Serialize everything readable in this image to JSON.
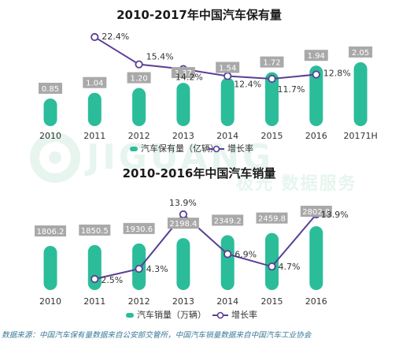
{
  "watermark": {
    "logo_text": "JIGUANG",
    "tagline": "极光 数据服务"
  },
  "colors": {
    "bar": "#2bbd9a",
    "line": "#5a3f95",
    "label_bg": "#a9a9a9",
    "label_text": "#ffffff",
    "title": "#1a1a1a",
    "watermark": "#e6f4ee"
  },
  "source_note": "数据来源：中国汽车保有量数据来自公安部交管所，中国汽车销量数据来自中国汽车工业协会",
  "chart_data": [
    {
      "type": "bar",
      "title": "2010-2017年中国汽车保有量",
      "categories": [
        "2010",
        "2011",
        "2012",
        "2013",
        "2014",
        "2015",
        "2016",
        "20171H"
      ],
      "series": [
        {
          "name": "汽车保有量（亿辆）",
          "type": "bar",
          "values": [
            0.85,
            1.04,
            1.2,
            1.37,
            1.54,
            1.72,
            1.94,
            2.05
          ],
          "labels": [
            "0.85",
            "1.04",
            "1.20",
            "1.37",
            "1.54",
            "1.72",
            "1.94",
            "2.05"
          ]
        },
        {
          "name": "增长率",
          "type": "line",
          "values": [
            null,
            22.4,
            15.4,
            14.2,
            12.4,
            11.7,
            12.8,
            null
          ],
          "labels": [
            "",
            "22.4%",
            "15.4%",
            "14.2%",
            "12.4%",
            "11.7%",
            "12.8%",
            ""
          ]
        }
      ],
      "legend_position": "bottom-right",
      "grid": false
    },
    {
      "type": "bar",
      "title": "2010-2016年中国汽车销量",
      "categories": [
        "2010",
        "2011",
        "2012",
        "2013",
        "2014",
        "2015",
        "2016"
      ],
      "series": [
        {
          "name": "汽车销量（万辆）",
          "type": "bar",
          "values": [
            1806.2,
            1850.5,
            1930.6,
            2198.4,
            2349.2,
            2459.8,
            2802.8
          ],
          "labels": [
            "1806.2",
            "1850.5",
            "1930.6",
            "2198.4",
            "2349.2",
            "2459.8",
            "2802.8"
          ]
        },
        {
          "name": "增长率",
          "type": "line",
          "values": [
            null,
            2.5,
            4.3,
            13.9,
            6.9,
            4.7,
            13.9
          ],
          "labels": [
            "",
            "2.5%",
            "4.3%",
            "13.9%",
            "6.9%",
            "4.7%",
            "13.9%"
          ]
        }
      ],
      "legend_position": "bottom-center",
      "grid": false
    }
  ]
}
